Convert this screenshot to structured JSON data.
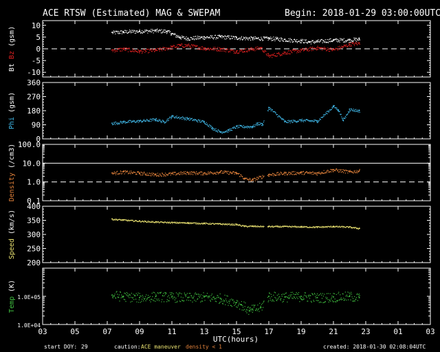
{
  "header": {
    "title": "ACE RTSW (Estimated) MAG & SWEPAM",
    "begin": "Begin: 2018-01-29 03:00:00UTC"
  },
  "footer": {
    "start_doy_label": "start DOY:",
    "start_doy_value": "29",
    "caution_label": "caution:",
    "caution_maneuver": "ACE maneuver",
    "caution_density": "density < 1",
    "created": "created: 2018-01-30 02:08:04UTC"
  },
  "colors": {
    "bt": "#ffffff",
    "bz": "#e02020",
    "phi": "#40b8e8",
    "density": "#e0803a",
    "speed": "#e8e070",
    "temp": "#40c040",
    "axes": "#ffffff"
  },
  "chart_data": [
    {
      "type": "scatter",
      "panel": "bt_bz",
      "ylabel_parts": [
        "Bt",
        "Bz",
        "(gsm)"
      ],
      "ylim": [
        -12,
        12
      ],
      "yticks": [
        "10",
        "5",
        "0",
        "-5",
        "-10"
      ],
      "dashed_ref": 0,
      "x_start_hour": 7.3,
      "x_end_hour": 22.6,
      "series": [
        {
          "name": "Bt",
          "x": [
            7.3,
            8,
            9,
            10,
            10.7,
            11,
            11.5,
            12,
            13,
            14,
            15,
            16,
            17,
            17.5,
            18,
            19,
            19.5,
            20,
            21,
            22,
            22.6
          ],
          "y": [
            7,
            7.3,
            7.6,
            7.8,
            7.5,
            6.5,
            5,
            4.5,
            5,
            5.2,
            4.8,
            4.5,
            4.5,
            4.3,
            4,
            3.5,
            3,
            3.2,
            3.8,
            3.8,
            4.2
          ]
        },
        {
          "name": "Bz",
          "x": [
            7.3,
            8,
            9,
            10,
            11,
            11.5,
            12,
            13,
            14,
            15,
            16,
            16.5,
            17,
            18,
            19,
            20,
            21,
            22,
            22.6
          ],
          "y": [
            -0.5,
            0,
            -1,
            -0.5,
            0.8,
            1.5,
            1.5,
            0.3,
            0,
            -1,
            0,
            0.5,
            -3,
            -1.5,
            -0.5,
            0.5,
            -0.3,
            2,
            2.5
          ]
        }
      ]
    },
    {
      "type": "scatter",
      "panel": "phi",
      "ylabel": "Phi (gsm)",
      "ylim": [
        0,
        360
      ],
      "yticks": [
        "360",
        "270",
        "180",
        "90",
        "0"
      ],
      "series": [
        {
          "name": "Phi",
          "x": [
            7.3,
            8,
            9,
            10,
            10.5,
            11,
            12,
            13,
            13.5,
            14,
            14.5,
            15,
            16,
            16.3,
            16.6,
            17,
            18,
            19,
            20,
            21,
            21.3,
            21.6,
            22,
            22.6
          ],
          "y": [
            100,
            110,
            115,
            125,
            110,
            145,
            130,
            110,
            70,
            45,
            55,
            80,
            80,
            100,
            95,
            200,
            110,
            120,
            115,
            210,
            185,
            120,
            190,
            180
          ]
        }
      ]
    },
    {
      "type": "scatter",
      "panel": "density",
      "ylabel": "Density (/cm3)",
      "ylog": true,
      "ylim": [
        0.1,
        100
      ],
      "yticks": [
        "100.0",
        "10.0",
        "1.0",
        "0.1"
      ],
      "solid_ref": 10,
      "dashed_ref": 1,
      "series": [
        {
          "name": "Density",
          "x": [
            7.3,
            8,
            9,
            10,
            11,
            12,
            13,
            14,
            15,
            15.5,
            16,
            17,
            18,
            19,
            20,
            21,
            22,
            22.6
          ],
          "y": [
            3,
            3.5,
            3,
            2.5,
            2.8,
            3.2,
            3,
            3.5,
            3,
            1.5,
            1.3,
            2.5,
            3,
            3.2,
            3,
            4.5,
            3.5,
            4
          ]
        }
      ]
    },
    {
      "type": "scatter",
      "panel": "speed",
      "ylabel": "Speed (km/s)",
      "ylim": [
        200,
        400
      ],
      "yticks": [
        "400",
        "350",
        "300",
        "250",
        "200"
      ],
      "series": [
        {
          "name": "Speed",
          "x": [
            7.3,
            8,
            9,
            10,
            11,
            12,
            13,
            14,
            15,
            15.5,
            16,
            17,
            18,
            19,
            20,
            21,
            22,
            22.6
          ],
          "y": [
            355,
            352,
            348,
            345,
            343,
            342,
            340,
            338,
            336,
            330,
            330,
            329,
            329,
            328,
            327,
            329,
            327,
            322
          ]
        }
      ]
    },
    {
      "type": "scatter",
      "panel": "temp",
      "ylabel": "Temp (K)",
      "ylog": true,
      "ylim": [
        10000,
        1000000
      ],
      "yticks": [
        "1.0E+05",
        "1.0E+04"
      ],
      "series": [
        {
          "name": "Temp",
          "x": [
            7.3,
            8,
            9,
            10,
            11,
            12,
            13,
            14,
            15,
            15.3,
            15.8,
            16,
            16.5,
            17,
            18,
            19,
            20,
            21,
            22,
            22.6
          ],
          "y": [
            110000,
            100000,
            90000,
            100000,
            95000,
            90000,
            95000,
            85000,
            60000,
            50000,
            30000,
            35000,
            40000,
            100000,
            95000,
            100000,
            90000,
            95000,
            100000,
            90000
          ]
        }
      ]
    }
  ],
  "xaxis": {
    "label": "UTC(hours)",
    "ticks": [
      "03",
      "05",
      "07",
      "09",
      "11",
      "13",
      "15",
      "17",
      "19",
      "21",
      "23",
      "01",
      "03"
    ],
    "tick_hours": [
      3,
      5,
      7,
      9,
      11,
      13,
      15,
      17,
      19,
      21,
      23,
      25,
      27
    ],
    "start_hour": 3,
    "end_hour": 27
  }
}
